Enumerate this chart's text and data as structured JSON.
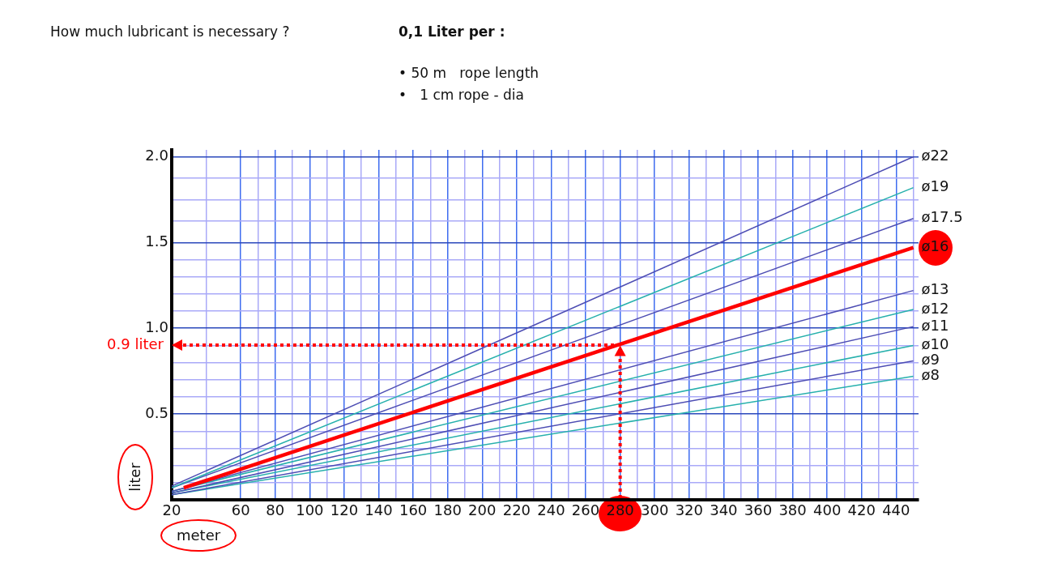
{
  "chart_data": {
    "type": "line",
    "title": "How much lubricant is necessary ?",
    "subtitle": "0,1 Liter per :",
    "xlabel": "meter",
    "ylabel": "liter",
    "annotations": [
      "• 50 m   rope length",
      "•   1 cm rope - dia",
      {
        "text": "0.9 liter",
        "x": 280,
        "y": 0.9
      }
    ],
    "x": [
      20,
      450
    ],
    "series": [
      {
        "name": "ø22",
        "color": "#4d4db3",
        "values": [
          0.08,
          2.0
        ]
      },
      {
        "name": "ø19",
        "color": "#26b0ac",
        "values": [
          0.07,
          1.82
        ]
      },
      {
        "name": "ø17.5",
        "color": "#4d4db3",
        "values": [
          0.07,
          1.64
        ]
      },
      {
        "name": "ø16",
        "color": "#ff0000",
        "x": [
          27,
          450
        ],
        "values": [
          0.07,
          1.47
        ]
      },
      {
        "name": "ø13",
        "color": "#4d4db3",
        "values": [
          0.05,
          1.22
        ]
      },
      {
        "name": "ø12",
        "color": "#26b0ac",
        "values": [
          0.05,
          1.11
        ]
      },
      {
        "name": "ø11",
        "color": "#4d4db3",
        "values": [
          0.04,
          1.01
        ]
      },
      {
        "name": "ø10",
        "color": "#26b0ac",
        "values": [
          0.04,
          0.9
        ]
      },
      {
        "name": "ø9",
        "color": "#4d4db3",
        "values": [
          0.03,
          0.81
        ]
      },
      {
        "name": "ø8",
        "color": "#26b0ac",
        "values": [
          0.03,
          0.72
        ]
      }
    ],
    "ref_lines": [
      {
        "axis": "x",
        "value": 280,
        "color": "#ff0000",
        "line_style": "dotted"
      }
    ],
    "xlim": [
      20,
      453
    ],
    "ylim": [
      0,
      2.04
    ],
    "xticks": [
      20,
      {
        "value": 40,
        "label": null
      },
      60,
      {
        "value": 70,
        "label": null
      },
      80,
      {
        "value": 90,
        "label": null
      },
      100,
      {
        "value": 110,
        "label": null
      },
      120,
      {
        "value": 130,
        "label": null
      },
      140,
      {
        "value": 150,
        "label": null
      },
      160,
      {
        "value": 170,
        "label": null
      },
      180,
      {
        "value": 190,
        "label": null
      },
      200,
      {
        "value": 210,
        "label": null
      },
      220,
      {
        "value": 230,
        "label": null
      },
      240,
      {
        "value": 250,
        "label": null
      },
      260,
      {
        "value": 270,
        "label": null
      },
      280,
      {
        "value": 290,
        "label": null
      },
      300,
      {
        "value": 310,
        "label": null
      },
      320,
      {
        "value": 330,
        "label": null
      },
      340,
      {
        "value": 350,
        "label": null
      },
      360,
      {
        "value": 370,
        "label": null
      },
      380,
      {
        "value": 390,
        "label": null
      },
      400,
      {
        "value": 410,
        "label": null
      },
      420,
      {
        "value": 430,
        "label": null
      },
      440,
      {
        "value": 450,
        "label": null
      }
    ],
    "yticks": [
      {
        "value": 0.1,
        "label": null
      },
      {
        "value": 0.2,
        "label": null
      },
      {
        "value": 0.3,
        "label": null
      },
      {
        "value": 0.4,
        "label": null
      },
      0.5,
      {
        "value": 0.6,
        "label": null
      },
      {
        "value": 0.7,
        "label": null
      },
      {
        "value": 0.8,
        "label": null
      },
      {
        "value": 0.9,
        "label": null
      },
      {
        "value": 1,
        "label": "1.0"
      },
      {
        "value": 1.1,
        "label": null
      },
      {
        "value": 1.2,
        "label": null
      },
      {
        "value": 1.3,
        "label": null
      },
      {
        "value": 1.4,
        "label": null
      },
      1.5,
      {
        "value": 1.625,
        "label": null
      },
      {
        "value": 1.75,
        "label": null
      },
      {
        "value": 1.875,
        "label": null
      },
      {
        "value": 2,
        "label": "2.0"
      }
    ],
    "grid": true,
    "marker": "none"
  }
}
